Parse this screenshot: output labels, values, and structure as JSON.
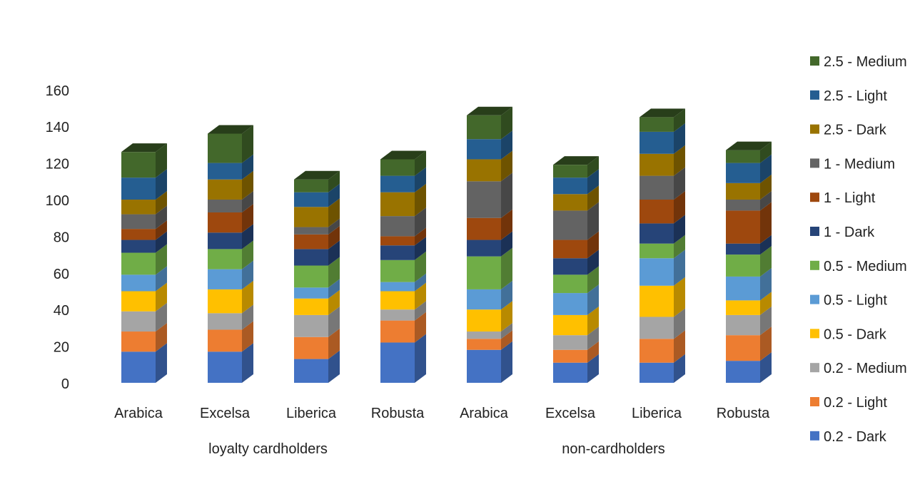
{
  "chart_data": {
    "type": "bar",
    "stacked": true,
    "three_d": true,
    "ylim": [
      0,
      160
    ],
    "yticks": [
      0,
      20,
      40,
      60,
      80,
      100,
      120,
      140,
      160
    ],
    "grid": false,
    "legend_position": "right",
    "groups": [
      {
        "label": "loyalty cardholders",
        "categories": [
          "Arabica",
          "Excelsa",
          "Liberica",
          "Robusta"
        ]
      },
      {
        "label": "non-cardholders",
        "categories": [
          "Arabica",
          "Excelsa",
          "Liberica",
          "Robusta"
        ]
      }
    ],
    "series": [
      {
        "name": "0.2 - Dark",
        "color": "#4472C4",
        "values": [
          17,
          17,
          13,
          22,
          18,
          11,
          11,
          12
        ]
      },
      {
        "name": "0.2 - Light",
        "color": "#ED7D31",
        "values": [
          11,
          12,
          12,
          12,
          6,
          7,
          13,
          14
        ]
      },
      {
        "name": "0.2 - Medium",
        "color": "#A5A5A5",
        "values": [
          11,
          9,
          12,
          6,
          4,
          8,
          12,
          11
        ]
      },
      {
        "name": "0.5 - Dark",
        "color": "#FFC000",
        "values": [
          11,
          13,
          9,
          10,
          12,
          11,
          17,
          8
        ]
      },
      {
        "name": "0.5 - Light",
        "color": "#5B9BD5",
        "values": [
          9,
          11,
          6,
          5,
          11,
          12,
          15,
          13
        ]
      },
      {
        "name": "0.5 - Medium",
        "color": "#70AD47",
        "values": [
          12,
          11,
          12,
          12,
          18,
          10,
          8,
          12
        ]
      },
      {
        "name": "1 - Dark",
        "color": "#264478",
        "values": [
          7,
          9,
          9,
          8,
          9,
          9,
          11,
          6
        ]
      },
      {
        "name": "1 - Light",
        "color": "#9E480E",
        "values": [
          6,
          11,
          8,
          5,
          12,
          10,
          13,
          18
        ]
      },
      {
        "name": "1 - Medium",
        "color": "#636363",
        "values": [
          8,
          7,
          4,
          11,
          20,
          16,
          13,
          6
        ]
      },
      {
        "name": "2.5 - Dark",
        "color": "#997300",
        "values": [
          8,
          11,
          11,
          13,
          12,
          9,
          12,
          9
        ]
      },
      {
        "name": "2.5 - Light",
        "color": "#255E91",
        "values": [
          12,
          9,
          8,
          9,
          11,
          9,
          12,
          11
        ]
      },
      {
        "name": "2.5 - Medium",
        "color": "#43682B",
        "values": [
          14,
          16,
          7,
          9,
          13,
          7,
          8,
          7
        ]
      }
    ]
  }
}
